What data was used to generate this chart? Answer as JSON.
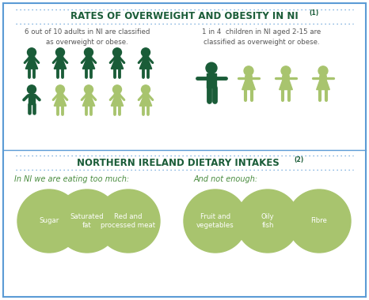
{
  "title1": "RATES OF OVERWEIGHT AND OBESITY IN NI",
  "title1_super": "(1)",
  "title2": "NORTHERN IRELAND DIETARY INTAKES",
  "title2_super": "(2)",
  "border_color": "#5b9bd5",
  "dark_green": "#1a5c38",
  "light_green": "#a8c46e",
  "circle_green": "#a8c46e",
  "title_color": "#1a5c38",
  "text_color": "#555555",
  "italic_green": "#4a8c3f",
  "section1_left_text": "6 out of 10 adults in NI are classified\nas overweight or obese.",
  "section1_right_text": "1 in 4  children in NI aged 2-15 are\nclassified as overweight or obese.",
  "too_much_label": "In NI we are eating too much:",
  "not_enough_label": "And not enough:",
  "too_much_items": [
    "Sugar",
    "Saturated\nfat",
    "Red and\nprocessed meat"
  ],
  "not_enough_items": [
    "Fruit and\nvegetables",
    "Oily\nfish",
    "Fibre"
  ],
  "bg_color": "#ffffff",
  "dotted_color": "#5b9bd5"
}
